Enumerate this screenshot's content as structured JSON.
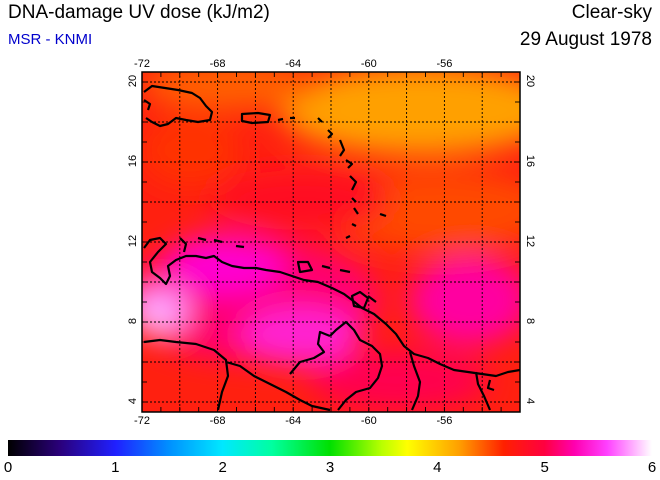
{
  "header": {
    "title": "DNA-damage UV dose (kJ/m2)",
    "source": "MSR - KNMI",
    "condition": "Clear-sky",
    "date": "29 August 1978"
  },
  "map": {
    "lon_ticks": [
      "-72",
      "-68",
      "-64",
      "-60",
      "-56"
    ],
    "lat_ticks": [
      "4",
      "8",
      "12",
      "16",
      "20"
    ],
    "lon_range": [
      -72,
      -52
    ],
    "lat_range": [
      3.5,
      20.5
    ]
  },
  "colorbar": {
    "ticks": [
      "0",
      "1",
      "2",
      "3",
      "4",
      "5",
      "6"
    ],
    "range": [
      0,
      6
    ]
  },
  "colors": {
    "orange": "#ffa000",
    "red_orange": "#ff3000",
    "red": "#ff0030",
    "magenta": "#ff00c0",
    "pink": "#ff40ff",
    "coast": "#000000"
  }
}
